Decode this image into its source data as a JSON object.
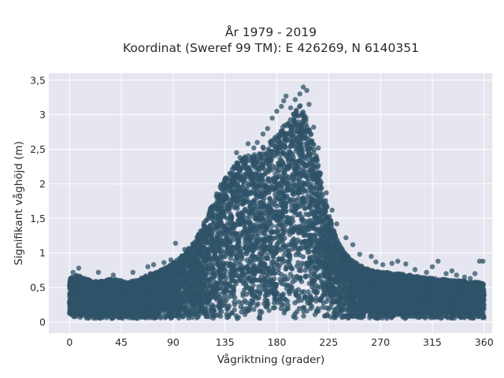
{
  "chart_data": {
    "type": "scatter",
    "title": "År 1979 - 2019",
    "subtitle": "Koordinat (Sweref 99 TM): E 426269, N 6140351",
    "xlabel": "Vågriktning (grader)",
    "ylabel": "Signifikant våghöjd (m)",
    "xlim": [
      -18,
      367
    ],
    "ylim": [
      -0.16,
      3.6
    ],
    "x_ticks": [
      0,
      45,
      90,
      135,
      180,
      225,
      270,
      315,
      360
    ],
    "x_tick_labels": [
      "0",
      "45",
      "90",
      "135",
      "180",
      "225",
      "270",
      "315",
      "360"
    ],
    "y_ticks": [
      0,
      0.5,
      1,
      1.5,
      2,
      2.5,
      3,
      3.5
    ],
    "y_tick_labels": [
      "0",
      "0,5",
      "1",
      "1,5",
      "2",
      "2,5",
      "3",
      "3,5"
    ],
    "grid": true,
    "legend": "none",
    "colors": {
      "marker": "#2f5368",
      "plot_bg": "#e5e6ef",
      "grid": "#ffffff"
    },
    "series": [
      {
        "x": [
          0,
          5,
          10,
          15,
          20,
          25,
          30,
          35,
          40,
          45,
          50,
          55,
          60,
          65,
          70,
          75,
          80,
          85,
          90,
          95,
          100,
          105,
          110,
          115,
          120,
          125,
          130,
          135,
          140,
          145,
          150,
          155,
          160,
          165,
          170,
          175,
          180,
          185,
          190,
          195,
          200,
          205,
          210,
          215,
          220,
          225,
          230,
          235,
          240,
          245,
          250,
          255,
          260,
          265,
          270,
          275,
          280,
          285,
          290,
          295,
          300,
          305,
          310,
          315,
          320,
          325,
          330,
          335,
          340,
          345,
          350,
          355,
          360
        ],
        "y_min": [
          0.05,
          0.05,
          0.05,
          0.05,
          0.05,
          0.05,
          0.05,
          0.05,
          0.05,
          0.05,
          0.05,
          0.05,
          0.05,
          0.05,
          0.05,
          0.05,
          0.05,
          0.05,
          0.05,
          0.05,
          0.05,
          0.05,
          0.05,
          0.05,
          0.05,
          0.05,
          0.05,
          0.05,
          0.05,
          0.05,
          0.05,
          0.05,
          0.05,
          0.05,
          0.05,
          0.05,
          0.05,
          0.05,
          0.05,
          0.05,
          0.05,
          0.05,
          0.05,
          0.05,
          0.05,
          0.05,
          0.05,
          0.05,
          0.05,
          0.05,
          0.05,
          0.05,
          0.05,
          0.05,
          0.05,
          0.05,
          0.05,
          0.05,
          0.05,
          0.05,
          0.05,
          0.05,
          0.05,
          0.05,
          0.05,
          0.05,
          0.05,
          0.05,
          0.05,
          0.05,
          0.05,
          0.05,
          0.05
        ],
        "y_max": [
          0.62,
          0.68,
          0.66,
          0.62,
          0.6,
          0.58,
          0.6,
          0.62,
          0.62,
          0.6,
          0.58,
          0.6,
          0.62,
          0.66,
          0.7,
          0.72,
          0.76,
          0.8,
          0.86,
          0.92,
          1.0,
          1.1,
          1.22,
          1.38,
          1.55,
          1.75,
          1.95,
          2.1,
          2.2,
          2.3,
          2.38,
          2.42,
          2.45,
          2.5,
          2.56,
          2.62,
          2.7,
          2.82,
          2.92,
          3.02,
          3.15,
          3.0,
          2.72,
          2.35,
          1.95,
          1.6,
          1.3,
          1.1,
          0.98,
          0.9,
          0.84,
          0.8,
          0.76,
          0.74,
          0.72,
          0.72,
          0.7,
          0.7,
          0.7,
          0.68,
          0.66,
          0.66,
          0.64,
          0.64,
          0.62,
          0.62,
          0.6,
          0.6,
          0.6,
          0.58,
          0.58,
          0.58,
          0.55
        ]
      }
    ],
    "outliers": [
      [
        3,
        0.72
      ],
      [
        8,
        0.78
      ],
      [
        25,
        0.72
      ],
      [
        38,
        0.68
      ],
      [
        55,
        0.72
      ],
      [
        68,
        0.8
      ],
      [
        73,
        0.83
      ],
      [
        82,
        0.86
      ],
      [
        88,
        0.9
      ],
      [
        92,
        1.14
      ],
      [
        100,
        1.05
      ],
      [
        103,
        0.97
      ],
      [
        108,
        1.12
      ],
      [
        115,
        1.28
      ],
      [
        120,
        1.35
      ],
      [
        127,
        1.63
      ],
      [
        133,
        1.9
      ],
      [
        140,
        2.15
      ],
      [
        145,
        2.45
      ],
      [
        148,
        2.38
      ],
      [
        155,
        2.58
      ],
      [
        160,
        2.52
      ],
      [
        163,
        2.6
      ],
      [
        168,
        2.72
      ],
      [
        172,
        2.8
      ],
      [
        176,
        2.95
      ],
      [
        180,
        3.05
      ],
      [
        184,
        3.12
      ],
      [
        186,
        3.2
      ],
      [
        188,
        3.27
      ],
      [
        192,
        3.1
      ],
      [
        196,
        3.22
      ],
      [
        200,
        3.3
      ],
      [
        203,
        3.4
      ],
      [
        206,
        3.35
      ],
      [
        208,
        3.15
      ],
      [
        212,
        2.82
      ],
      [
        216,
        2.52
      ],
      [
        218,
        2.15
      ],
      [
        223,
        1.87
      ],
      [
        228,
        1.62
      ],
      [
        232,
        1.42
      ],
      [
        240,
        1.22
      ],
      [
        246,
        1.12
      ],
      [
        252,
        0.98
      ],
      [
        262,
        0.95
      ],
      [
        266,
        0.87
      ],
      [
        272,
        0.83
      ],
      [
        280,
        0.85
      ],
      [
        285,
        0.88
      ],
      [
        292,
        0.84
      ],
      [
        300,
        0.76
      ],
      [
        310,
        0.72
      ],
      [
        315,
        0.8
      ],
      [
        320,
        0.88
      ],
      [
        327,
        0.7
      ],
      [
        332,
        0.74
      ],
      [
        336,
        0.68
      ],
      [
        343,
        0.65
      ],
      [
        348,
        0.63
      ],
      [
        352,
        0.7
      ],
      [
        356,
        0.88
      ],
      [
        359,
        0.88
      ]
    ]
  }
}
